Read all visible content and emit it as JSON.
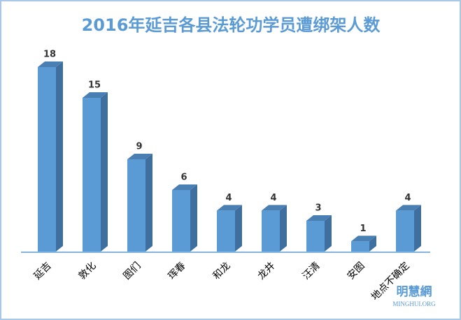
{
  "chart_data": {
    "type": "bar3d",
    "title": "2016年延吉各县法轮功学员遭绑架人数",
    "categories": [
      "延吉",
      "敦化",
      "图们",
      "珲春",
      "和龙",
      "龙井",
      "汪清",
      "安图",
      "地点不确定"
    ],
    "values": [
      18,
      15,
      9,
      6,
      4,
      4,
      3,
      1,
      4
    ],
    "color": "#5b9bd5",
    "watermark": "明慧網",
    "watermark_sub": "MINGHUI.ORG"
  }
}
